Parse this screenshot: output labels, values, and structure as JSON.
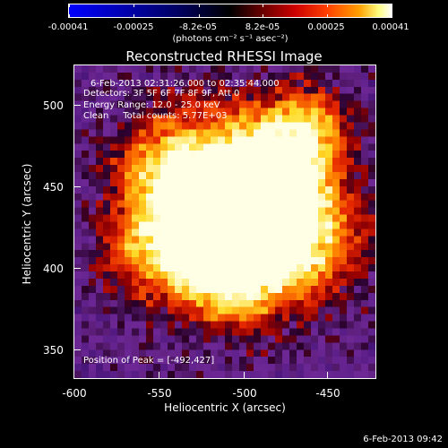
{
  "colorbar": {
    "tick_labels": [
      "-0.00041",
      "-0.00025",
      "-8.2e-05",
      "8.2e-05",
      "0.00025",
      "0.00041"
    ],
    "unit": "(photons cm⁻² s⁻¹ asec⁻²)"
  },
  "image": {
    "title": "Reconstructed RHESSI Image",
    "time_range": "6-Feb-2013 02:31:26.000 to 02:35:44.000",
    "detectors": "Detectors: 3F 5F 6F 7F 8F 9F, Att 0",
    "energy_range": "Energy Range: 12.0 - 25.0 keV",
    "clean_info": "Clean     Total counts: 5.77E+03",
    "peak": "Position of Peak = [-492,427]"
  },
  "axes": {
    "xlabel": "Heliocentric X (arcsec)",
    "ylabel": "Heliocentric Y (arcsec)",
    "xticks": [
      "-600",
      "-550",
      "-500",
      "-450"
    ],
    "yticks": [
      "500",
      "450",
      "400",
      "350"
    ]
  },
  "footer": {
    "timestamp": "6-Feb-2013 09:42"
  },
  "colors": {
    "min": "#0000ff",
    "mid": "#000000",
    "hot": "#ff2a00",
    "max": "#ffffff"
  }
}
